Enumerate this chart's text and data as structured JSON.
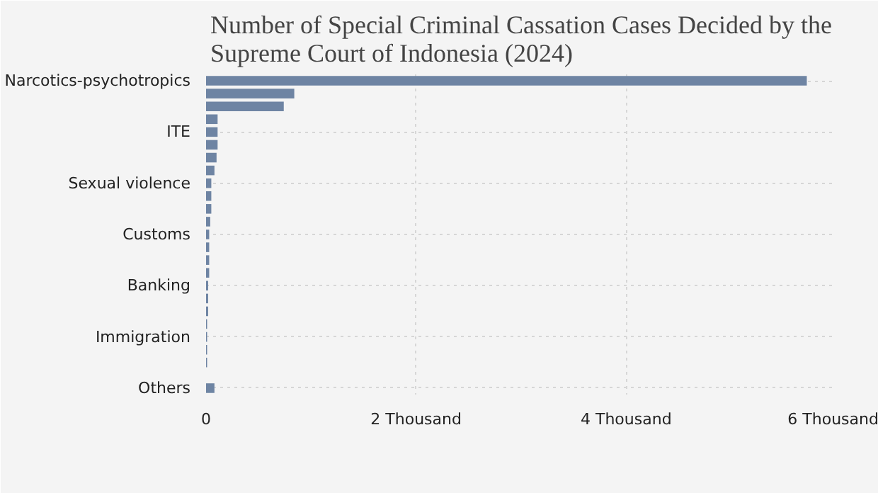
{
  "chart_data": {
    "type": "bar",
    "orientation": "horizontal",
    "title": "Number of Special Criminal Cassation Cases Decided by the\nSupreme Court of Indonesia (2024)",
    "categories": [
      "Narcotics-psychotropics",
      null,
      null,
      null,
      "ITE",
      null,
      null,
      null,
      "Sexual violence",
      null,
      null,
      null,
      "Customs",
      null,
      null,
      null,
      "Banking",
      null,
      null,
      null,
      "Immigration",
      null,
      null,
      null,
      "Others"
    ],
    "values": [
      5.72,
      0.84,
      0.74,
      0.11,
      0.11,
      0.11,
      0.1,
      0.08,
      0.05,
      0.05,
      0.05,
      0.04,
      0.03,
      0.03,
      0.03,
      0.03,
      0.02,
      0.02,
      0.02,
      0.01,
      0.01,
      0.01,
      0.01,
      0,
      0.08
    ],
    "color": "#6e84a3",
    "xlim": [
      0,
      6
    ],
    "xticks": [
      0,
      {
        "value": 2,
        "label": "2 Thousand"
      },
      {
        "value": 4,
        "label": "4 Thousand"
      },
      {
        "value": 6,
        "label": "6 Thousand"
      }
    ],
    "grid": true
  }
}
